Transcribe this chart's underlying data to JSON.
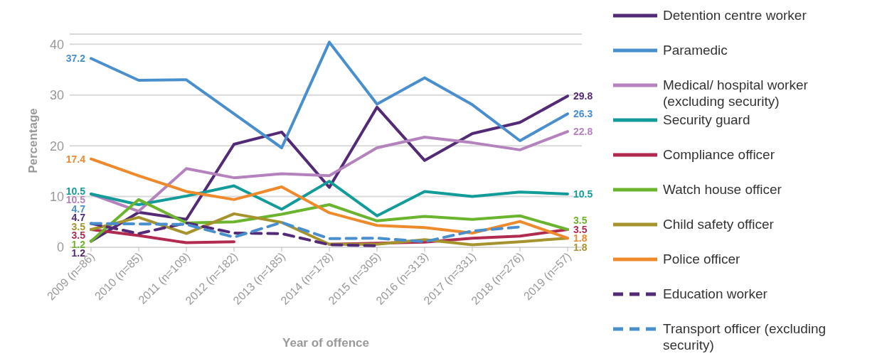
{
  "chart_data": {
    "type": "line",
    "xlabel": "Year of offence",
    "ylabel": "Percentage",
    "categories": [
      "2009 (n=86)",
      "2010 (n=85)",
      "2011 (n=109)",
      "2012 (n=182)",
      "2013 (n=185)",
      "2014 (n=178)",
      "2015 (n=305)",
      "2016 (n=313)",
      "2017 (n=331)",
      "2018 (n=276)",
      "2019 (n=57)"
    ],
    "ylim": [
      0,
      42
    ],
    "yticks": [
      0,
      10,
      20,
      30,
      40
    ],
    "grid": "y",
    "legend": "right",
    "marker": "none",
    "series": [
      {
        "name": "Detention centre worker",
        "color": "#532a76",
        "values": [
          1.2,
          6.9,
          5.5,
          20.3,
          22.7,
          11.8,
          27.6,
          17.1,
          22.4,
          24.6,
          29.8
        ],
        "value_labels": [
          "1.2",
          null,
          null,
          null,
          null,
          null,
          null,
          null,
          null,
          null,
          "29.8"
        ]
      },
      {
        "name": "Paramedic",
        "color": "#4a8fcd",
        "values": [
          37.2,
          32.9,
          33,
          26.3,
          19.6,
          40.4,
          28.2,
          33.4,
          28.1,
          21,
          26.3
        ],
        "value_labels": [
          "37.2",
          null,
          null,
          null,
          null,
          null,
          null,
          null,
          null,
          null,
          "26.3"
        ]
      },
      {
        "name": "Medical/ hospital worker (excluding security)",
        "color": "#b482bd",
        "values": [
          10.5,
          7.1,
          15.5,
          13.7,
          14.5,
          14.1,
          19.6,
          21.7,
          20.6,
          19.2,
          22.8
        ],
        "value_labels": [
          "10.5",
          null,
          null,
          null,
          null,
          null,
          null,
          null,
          null,
          null,
          "22.8"
        ]
      },
      {
        "name": "Security guard",
        "color": "#139b9a",
        "values": [
          10.5,
          8.4,
          10.1,
          12.1,
          7.5,
          13,
          6.2,
          11,
          10,
          10.9,
          10.5
        ],
        "value_labels": [
          "10.5",
          null,
          null,
          null,
          null,
          null,
          null,
          null,
          null,
          null,
          "10.5"
        ]
      },
      {
        "name": "Compliance officer",
        "color": "#b02b4f",
        "values": [
          3.5,
          2.3,
          0.9,
          1.1,
          null,
          0.6,
          0.8,
          1,
          1.8,
          2.2,
          3.5
        ],
        "value_labels": [
          "3.5",
          null,
          null,
          null,
          null,
          null,
          null,
          null,
          null,
          null,
          "3.5"
        ]
      },
      {
        "name": "Watch house officer",
        "color": "#6bb42e",
        "values": [
          1.2,
          9.4,
          4.8,
          5,
          6.5,
          8.4,
          5.2,
          6.1,
          5.5,
          6.2,
          3.5
        ],
        "value_labels": [
          "1.2",
          null,
          null,
          null,
          null,
          null,
          null,
          null,
          null,
          null,
          "3.5"
        ]
      },
      {
        "name": "Child safety officer",
        "color": "#a5942d",
        "values": [
          3.5,
          5.9,
          2.7,
          6.6,
          4.9,
          0.6,
          0.6,
          1.5,
          0.5,
          1.1,
          1.8
        ],
        "value_labels": [
          "3.5",
          null,
          null,
          null,
          null,
          null,
          null,
          null,
          null,
          null,
          "1.8"
        ]
      },
      {
        "name": "Police officer",
        "color": "#ef8a2c",
        "values": [
          17.4,
          14.1,
          11,
          9.4,
          11.9,
          6.8,
          4.3,
          3.9,
          2.8,
          5.1,
          1.8
        ],
        "value_labels": [
          "17.4",
          null,
          null,
          null,
          null,
          null,
          null,
          null,
          null,
          null,
          "1.8"
        ]
      },
      {
        "name": "Education worker",
        "color": "#532a76",
        "line_style": "dashed",
        "values": [
          4.7,
          2.7,
          4.8,
          2.8,
          2.7,
          0.5,
          0.3,
          null,
          null,
          null,
          null
        ],
        "value_labels": [
          "4.7",
          null,
          null,
          null,
          null,
          null,
          null,
          null,
          null,
          null,
          null
        ]
      },
      {
        "name": "Transport officer (excluding security)",
        "color": "#4a8fcd",
        "line_style": "dashed",
        "values": [
          4.7,
          4.6,
          4.5,
          2,
          4.9,
          1.7,
          1.8,
          1.1,
          3.2,
          4,
          null
        ],
        "value_labels": [
          "4.7",
          null,
          null,
          null,
          null,
          null,
          null,
          null,
          null,
          null,
          null
        ]
      }
    ]
  }
}
